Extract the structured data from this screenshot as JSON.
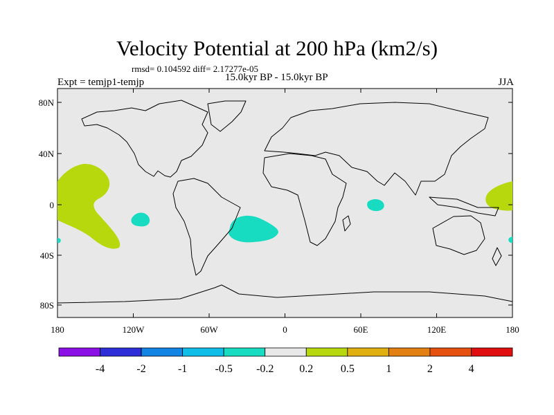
{
  "title": "Velocity Potential at 200 hPa (km2/s)",
  "stats_text": "rmsd= 0.104592 diff= 2.17277e-05",
  "experiment_text": "Expt = temjp1-temjp",
  "period_text": "15.0kyr BP - 15.0kyr BP",
  "season_text": "JJA",
  "map": {
    "background_color": "#e8e8e8",
    "lon_ticks": [
      "180",
      "120W",
      "60W",
      "0",
      "60E",
      "120E",
      "180"
    ],
    "lat_ticks": [
      "80N",
      "40N",
      "0",
      "40S",
      "80S"
    ]
  },
  "anomaly_regions": [
    {
      "name": "central-pacific-positive",
      "sign": "positive",
      "color": "#b7d80c"
    },
    {
      "name": "east-pacific-negative",
      "sign": "negative",
      "color": "#17dcc2"
    },
    {
      "name": "south-atlantic-negative",
      "sign": "negative",
      "color": "#17dcc2"
    },
    {
      "name": "indian-ocean-negative",
      "sign": "negative",
      "color": "#17dcc2"
    },
    {
      "name": "west-pacific-positive",
      "sign": "positive",
      "color": "#b7d80c"
    }
  ],
  "colorbar": {
    "colors": [
      "#8b10e6",
      "#2d2ed8",
      "#1284e4",
      "#10bde8",
      "#17dcc2",
      "#e8e8e8",
      "#b7d80c",
      "#e0b010",
      "#e38012",
      "#e5500e",
      "#e00e0e"
    ],
    "labels": [
      "-4",
      "-2",
      "-1",
      "-0.5",
      "-0.2",
      "0.2",
      "0.5",
      "1",
      "2",
      "4"
    ]
  }
}
